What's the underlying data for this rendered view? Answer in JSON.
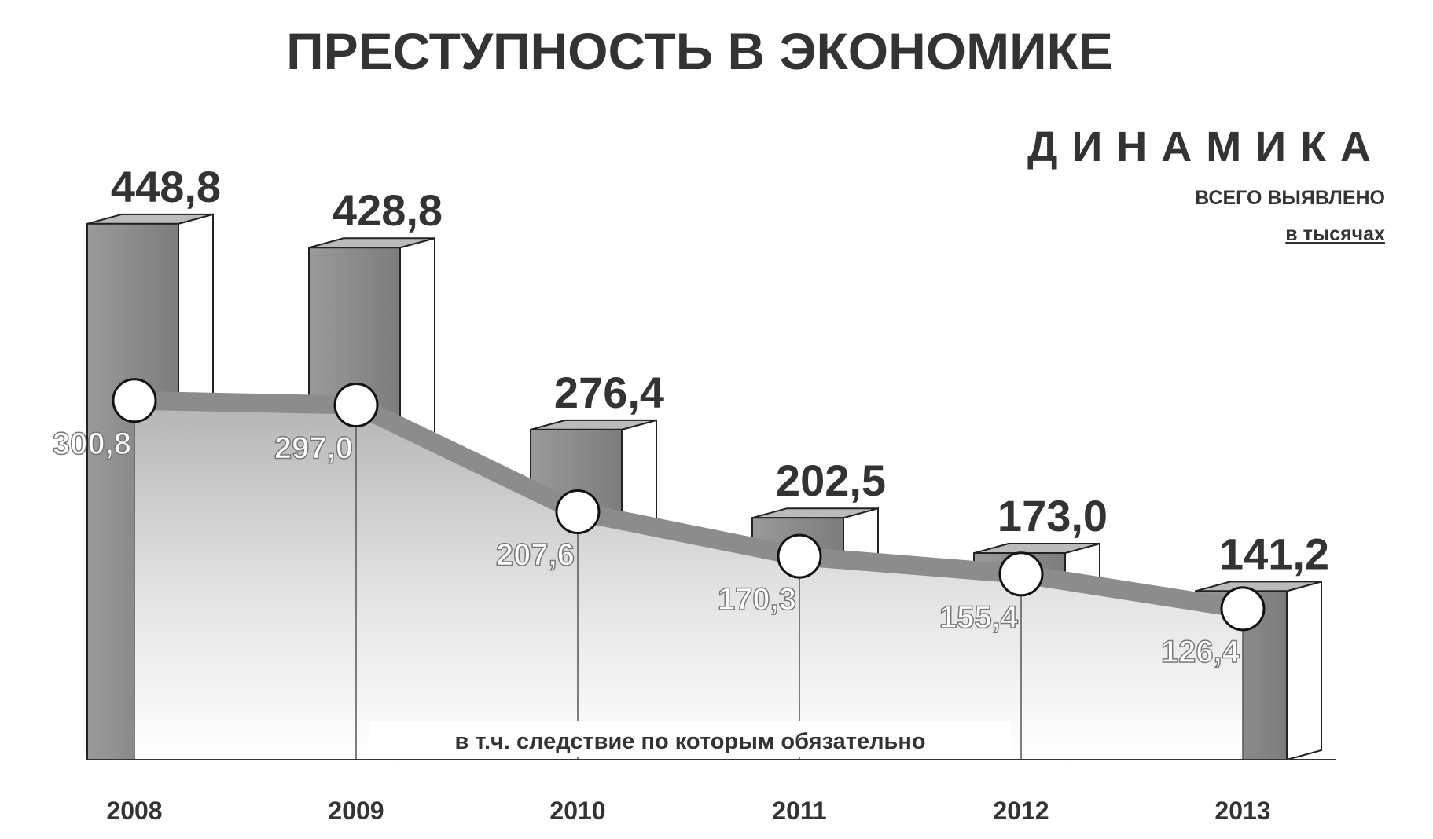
{
  "chart_data": {
    "type": "bar",
    "title": "ПРЕСТУПНОСТЬ В ЭКОНОМИКЕ",
    "subtitle": "ДИНАМИКА",
    "unit_label": "в тысячах",
    "categories": [
      "2008",
      "2009",
      "2010",
      "2011",
      "2012",
      "2013"
    ],
    "series": [
      {
        "name": "ВСЕГО ВЫЯВЛЕНО",
        "type": "bar",
        "color": "#8a8a8a",
        "values": [
          448.8,
          428.8,
          276.4,
          202.5,
          173.0,
          141.2
        ],
        "value_labels": [
          "448,8",
          "428,8",
          "276,4",
          "202,5",
          "173,0",
          "141,2"
        ]
      },
      {
        "name": "в т.ч. следствие по которым обязательно",
        "type": "line",
        "color": "#8c8c8c",
        "values": [
          300.8,
          297.0,
          207.6,
          170.3,
          155.4,
          126.4
        ],
        "value_labels": [
          "300,8",
          "297,0",
          "207,6",
          "170,3",
          "155,4",
          "126,4"
        ]
      }
    ]
  }
}
